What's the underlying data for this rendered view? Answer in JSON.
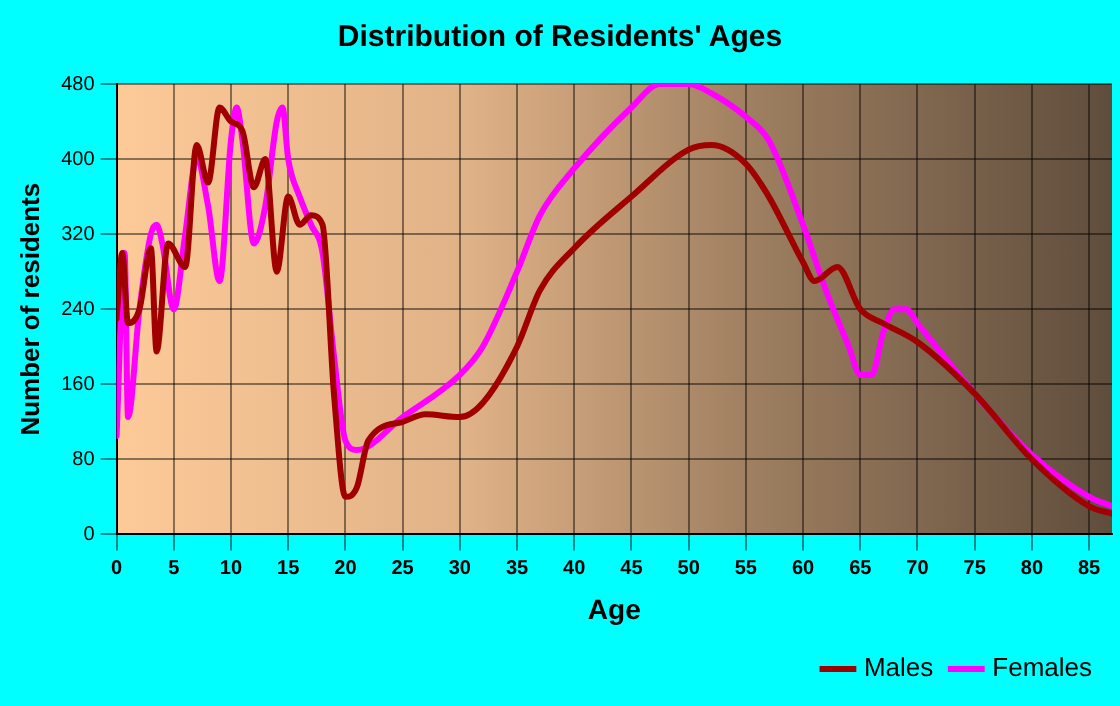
{
  "chart_data": {
    "type": "line",
    "title": "Distribution of Residents' Ages",
    "xlabel": "Age",
    "ylabel": "Number of residents",
    "xlim": [
      0,
      87
    ],
    "xticks": [
      0,
      5,
      10,
      15,
      20,
      25,
      30,
      35,
      40,
      45,
      50,
      55,
      60,
      65,
      70,
      75,
      80,
      85
    ],
    "ylim": [
      0,
      480
    ],
    "yticks": [
      0,
      80,
      160,
      240,
      320,
      400,
      480
    ],
    "grid": true,
    "legend": "bottom right",
    "marker": "none",
    "line_style": "solid",
    "series": [
      {
        "name": "Males",
        "color": "#a00000",
        "x": [
          0,
          0.5,
          1,
          2,
          3,
          3.5,
          4.5,
          6,
          7,
          8,
          9,
          10,
          11,
          12,
          13,
          14,
          15,
          16,
          17,
          18,
          19,
          20,
          21,
          22,
          25,
          27,
          30,
          32,
          35,
          37,
          40,
          45,
          50,
          52,
          55,
          57,
          60,
          61,
          63,
          65,
          67,
          70,
          75,
          80,
          85,
          87
        ],
        "values": [
          230,
          300,
          225,
          240,
          305,
          195,
          310,
          285,
          415,
          375,
          455,
          440,
          430,
          370,
          400,
          280,
          360,
          330,
          340,
          330,
          150,
          40,
          50,
          100,
          120,
          128,
          125,
          140,
          200,
          260,
          305,
          360,
          410,
          415,
          395,
          360,
          290,
          270,
          285,
          240,
          225,
          205,
          150,
          80,
          30,
          22
        ]
      },
      {
        "name": "Females",
        "color": "#ff00ff",
        "x": [
          0,
          0.7,
          1,
          2,
          3,
          3.5,
          4,
          5,
          6,
          7,
          8,
          9,
          10,
          10.5,
          11,
          12,
          13,
          14,
          14.5,
          15,
          16,
          17,
          18,
          19,
          20,
          21,
          25,
          30,
          32,
          35,
          37,
          40,
          45,
          47.5,
          50,
          52,
          55,
          57,
          60,
          62,
          64,
          65,
          66,
          67,
          68,
          69,
          70,
          75,
          80,
          85,
          87
        ],
        "values": [
          105,
          300,
          125,
          240,
          320,
          330,
          310,
          240,
          320,
          400,
          350,
          270,
          420,
          455,
          420,
          310,
          350,
          440,
          455,
          400,
          360,
          330,
          300,
          190,
          100,
          90,
          125,
          170,
          200,
          280,
          340,
          390,
          455,
          480,
          480,
          470,
          445,
          420,
          330,
          260,
          200,
          170,
          170,
          215,
          240,
          240,
          225,
          150,
          85,
          40,
          30
        ]
      }
    ]
  }
}
